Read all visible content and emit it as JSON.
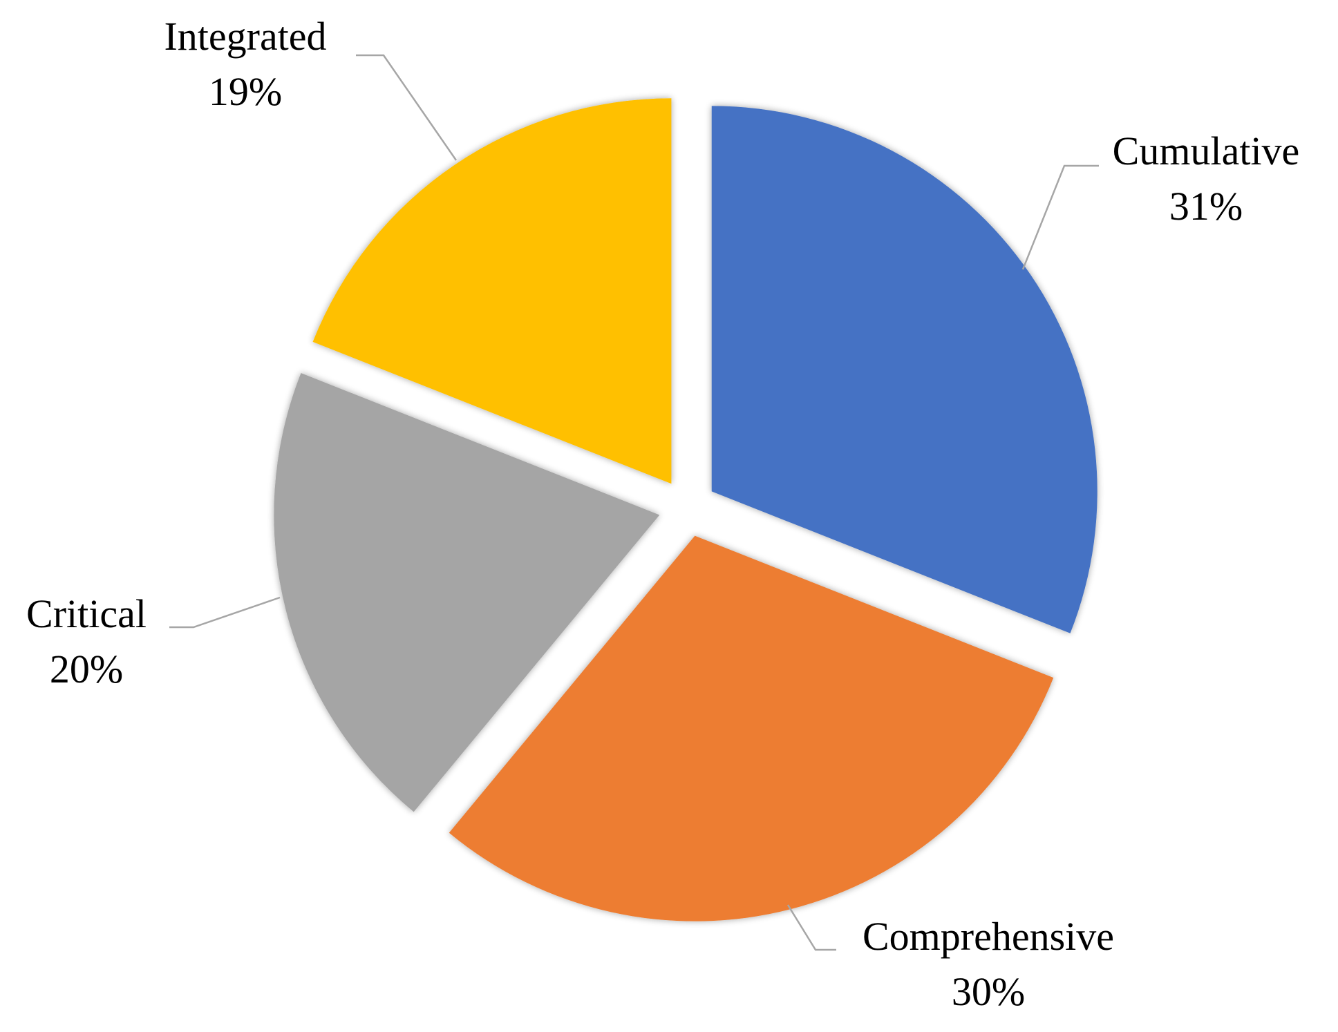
{
  "chart_data": {
    "type": "pie",
    "title": "",
    "categories": [
      "Cumulative",
      "Comprehensive",
      "Critical",
      "Integrated"
    ],
    "values": [
      31,
      30,
      20,
      19
    ],
    "value_labels": [
      "31%",
      "30%",
      "20%",
      "19%"
    ],
    "colors": [
      "#4472C4",
      "#ED7D31",
      "#A5A5A5",
      "#FFC000"
    ],
    "start_angle_deg": 0,
    "direction": "clockwise",
    "exploded": true,
    "legend": "none",
    "data_labels": "outside-with-leader-lines"
  }
}
